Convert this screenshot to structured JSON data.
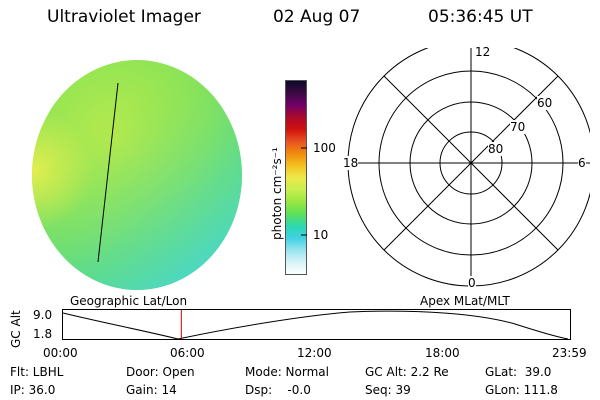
{
  "header": {
    "title": "Ultraviolet Imager",
    "date": "02 Aug 07",
    "time": "05:36:45 UT"
  },
  "colorbar": {
    "unit_label": "photon cm⁻²s⁻¹",
    "scale": "log",
    "ticks": [
      "100",
      "10"
    ],
    "colors": [
      "#0a0a2a",
      "#3a0a40",
      "#70006a",
      "#a80a2a",
      "#d01010",
      "#e85020",
      "#f08a10",
      "#f4c020",
      "#eee84a",
      "#c8ee50",
      "#9ae640",
      "#5ee05a",
      "#2ed8b0",
      "#40d2e4",
      "#9ae4ee",
      "#d8f4f8",
      "#ffffff"
    ]
  },
  "polar_plot": {
    "time_labels": [
      "12",
      "18",
      "6",
      "0"
    ],
    "latitude_labels": [
      "60",
      "70",
      "80"
    ]
  },
  "timeline": {
    "left_label": "Geographic Lat/Lon",
    "right_label": "Apex MLat/MLT",
    "y_axis_label": "GC Alt",
    "y_ticks": [
      "9.0",
      "1.8"
    ],
    "x_ticks": [
      "00:00",
      "06:00",
      "12:00",
      "18:00",
      "23:59"
    ],
    "current_time_hours": 5.6
  },
  "info": {
    "flt": "Flt: LBHL",
    "ip": "IP: 36.0",
    "door": "Door: Open",
    "gain": "Gain: 14",
    "mode": "Mode: Normal",
    "dsp": "Dsp:    -0.0",
    "gc_alt": "GC Alt: 2.2 Re",
    "seq": "Seq: 39",
    "glat": "GLat:  39.0",
    "glon": "GLon: 111.8"
  }
}
